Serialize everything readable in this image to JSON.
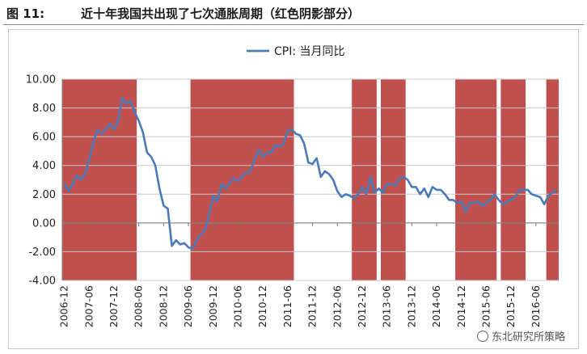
{
  "header": {
    "figure_label": "图  11:",
    "title": "近十年我国共出现了七次通胀周期（红色阴影部分）"
  },
  "watermark": "东北研究所策略",
  "colors": {
    "line": "#4a7ab8",
    "shade": "#c0504d",
    "grid": "#c8c8c8"
  },
  "chart_data": {
    "type": "line",
    "series": [
      {
        "name": "CPI: 当月同比",
        "x": [
          "2006-12",
          "2007-01",
          "2007-02",
          "2007-03",
          "2007-04",
          "2007-05",
          "2007-06",
          "2007-07",
          "2007-08",
          "2007-09",
          "2007-10",
          "2007-11",
          "2007-12",
          "2008-01",
          "2008-02",
          "2008-03",
          "2008-04",
          "2008-05",
          "2008-06",
          "2008-07",
          "2008-08",
          "2008-09",
          "2008-10",
          "2008-11",
          "2008-12",
          "2009-01",
          "2009-02",
          "2009-03",
          "2009-04",
          "2009-05",
          "2009-06",
          "2009-07",
          "2009-08",
          "2009-09",
          "2009-10",
          "2009-11",
          "2009-12",
          "2010-01",
          "2010-02",
          "2010-03",
          "2010-04",
          "2010-05",
          "2010-06",
          "2010-07",
          "2010-08",
          "2010-09",
          "2010-10",
          "2010-11",
          "2010-12",
          "2011-01",
          "2011-02",
          "2011-03",
          "2011-04",
          "2011-05",
          "2011-06",
          "2011-07",
          "2011-08",
          "2011-09",
          "2011-10",
          "2011-11",
          "2011-12",
          "2012-01",
          "2012-02",
          "2012-03",
          "2012-04",
          "2012-05",
          "2012-06",
          "2012-07",
          "2012-08",
          "2012-09",
          "2012-10",
          "2012-11",
          "2012-12",
          "2013-01",
          "2013-02",
          "2013-03",
          "2013-04",
          "2013-05",
          "2013-06",
          "2013-07",
          "2013-08",
          "2013-09",
          "2013-10",
          "2013-11",
          "2013-12",
          "2014-01",
          "2014-02",
          "2014-03",
          "2014-04",
          "2014-05",
          "2014-06",
          "2014-07",
          "2014-08",
          "2014-09",
          "2014-10",
          "2014-11",
          "2014-12",
          "2015-01",
          "2015-02",
          "2015-03",
          "2015-04",
          "2015-05",
          "2015-06",
          "2015-07",
          "2015-08",
          "2015-09",
          "2015-10",
          "2015-11",
          "2015-12",
          "2016-01",
          "2016-02",
          "2016-03",
          "2016-04",
          "2016-05",
          "2016-06",
          "2016-07",
          "2016-08",
          "2016-09",
          "2016-10",
          "2016-11"
        ],
        "values": [
          2.8,
          2.2,
          2.7,
          3.3,
          3.0,
          3.4,
          4.4,
          5.6,
          6.5,
          6.2,
          6.5,
          6.9,
          6.5,
          7.1,
          8.7,
          8.3,
          8.5,
          7.7,
          7.1,
          6.3,
          4.9,
          4.6,
          4.0,
          2.4,
          1.2,
          1.0,
          -1.6,
          -1.2,
          -1.5,
          -1.4,
          -1.7,
          -1.8,
          -1.2,
          -0.8,
          -0.5,
          0.6,
          1.9,
          1.5,
          2.7,
          2.4,
          2.8,
          3.1,
          2.9,
          3.3,
          3.5,
          3.6,
          4.4,
          5.1,
          4.6,
          4.9,
          4.9,
          5.4,
          5.3,
          5.5,
          6.4,
          6.5,
          6.2,
          6.1,
          5.5,
          4.2,
          4.1,
          4.5,
          3.2,
          3.6,
          3.4,
          3.0,
          2.2,
          1.8,
          2.0,
          1.9,
          1.7,
          2.0,
          2.5,
          2.0,
          3.2,
          2.1,
          2.4,
          2.1,
          2.7,
          2.7,
          2.6,
          3.1,
          3.2,
          3.0,
          2.5,
          2.5,
          2.0,
          2.4,
          1.8,
          2.5,
          2.3,
          2.3,
          2.0,
          1.6,
          1.6,
          1.4,
          1.5,
          0.8,
          1.4,
          1.4,
          1.5,
          1.2,
          1.4,
          1.6,
          2.0,
          1.6,
          1.3,
          1.5,
          1.6,
          1.8,
          2.3,
          2.3,
          2.3,
          2.0,
          1.9,
          1.8,
          1.3,
          1.9,
          2.1,
          2.3
        ]
      }
    ],
    "shaded_periods": [
      [
        "2006-12",
        "2008-05"
      ],
      [
        "2009-07",
        "2011-07"
      ],
      [
        "2012-10",
        "2013-03"
      ],
      [
        "2013-05",
        "2013-10"
      ],
      [
        "2014-11",
        "2015-08"
      ],
      [
        "2015-10",
        "2016-03"
      ],
      [
        "2016-09",
        "2016-11"
      ]
    ],
    "x_tick_labels": [
      "2006-12",
      "2007-06",
      "2007-12",
      "2008-06",
      "2008-12",
      "2009-06",
      "2009-12",
      "2010-06",
      "2010-12",
      "2011-06",
      "2011-12",
      "2012-06",
      "2012-12",
      "2013-06",
      "2013-12",
      "2014-06",
      "2014-12",
      "2015-06",
      "2015-12",
      "2016-06"
    ],
    "y_tick_labels": [
      "10.00",
      "8.00",
      "6.00",
      "4.00",
      "2.00",
      "0.00",
      "-2.00",
      "-4.00"
    ],
    "ylim": [
      -4,
      10
    ],
    "legend": {
      "label": "CPI: 当月同比",
      "placement": "top-center"
    },
    "grid": "horizontal"
  }
}
